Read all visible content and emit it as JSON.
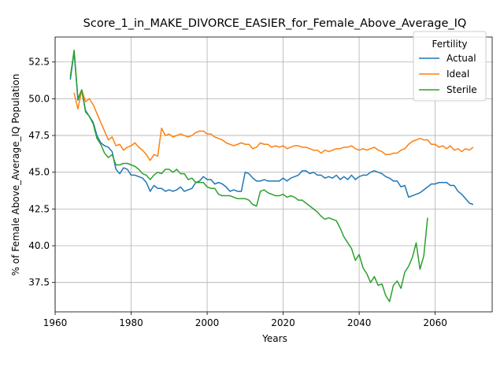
{
  "chart_data": {
    "type": "line",
    "title": "Score_1_in_MAKE_DIVORCE_EASIER_for_Female_Above_Average_IQ",
    "xlabel": "Years",
    "ylabel": "% of Female Above_Average_IQ Population",
    "xlim": [
      1960,
      2075
    ],
    "ylim": [
      35.5,
      54.2
    ],
    "xticks": [
      1960,
      1980,
      2000,
      2020,
      2040,
      2060
    ],
    "yticks": [
      37.5,
      40.0,
      42.5,
      45.0,
      47.5,
      50.0,
      52.5
    ],
    "ytick_labels": [
      "37.5",
      "40.0",
      "42.5",
      "45.0",
      "47.5",
      "50.0",
      "52.5"
    ],
    "grid": true,
    "legend": {
      "title": "Fertility",
      "position": "top-right"
    },
    "series": [
      {
        "name": "Actual",
        "color": "#1f77b4",
        "x": [
          1964,
          1965,
          1966,
          1967,
          1968,
          1969,
          1970,
          1971,
          1972,
          1973,
          1974,
          1975,
          1976,
          1977,
          1978,
          1979,
          1980,
          1981,
          1982,
          1983,
          1984,
          1985,
          1986,
          1987,
          1988,
          1989,
          1990,
          1991,
          1992,
          1993,
          1994,
          1995,
          1996,
          1997,
          1998,
          1999,
          2000,
          2001,
          2002,
          2003,
          2004,
          2005,
          2006,
          2007,
          2008,
          2009,
          2010,
          2011,
          2012,
          2013,
          2014,
          2015,
          2016,
          2017,
          2018,
          2019,
          2020,
          2021,
          2022,
          2023,
          2024,
          2025,
          2026,
          2027,
          2028,
          2029,
          2030,
          2031,
          2032,
          2033,
          2034,
          2035,
          2036,
          2037,
          2038,
          2039,
          2040,
          2041,
          2042,
          2043,
          2044,
          2045,
          2046,
          2047,
          2048,
          2049,
          2050,
          2051,
          2052,
          2053,
          2054,
          2055,
          2056,
          2057,
          2058,
          2059,
          2060,
          2061,
          2062,
          2063,
          2064,
          2065,
          2066,
          2067,
          2068,
          2069,
          2070
        ],
        "y": [
          51.3,
          53.2,
          49.9,
          50.6,
          49.2,
          48.8,
          48.4,
          47.5,
          47.0,
          46.8,
          46.7,
          46.4,
          45.2,
          44.9,
          45.3,
          45.2,
          44.8,
          44.8,
          44.7,
          44.6,
          44.3,
          43.7,
          44.1,
          43.9,
          43.9,
          43.7,
          43.8,
          43.7,
          43.8,
          44.0,
          43.7,
          43.8,
          43.9,
          44.3,
          44.4,
          44.7,
          44.5,
          44.5,
          44.2,
          44.3,
          44.2,
          44.0,
          43.7,
          43.8,
          43.7,
          43.7,
          45.0,
          44.9,
          44.6,
          44.4,
          44.4,
          44.5,
          44.4,
          44.4,
          44.4,
          44.4,
          44.6,
          44.4,
          44.6,
          44.7,
          44.8,
          45.1,
          45.1,
          44.9,
          45.0,
          44.8,
          44.8,
          44.6,
          44.7,
          44.6,
          44.8,
          44.5,
          44.7,
          44.5,
          44.8,
          44.5,
          44.7,
          44.8,
          44.8,
          45.0,
          45.1,
          45.0,
          44.9,
          44.7,
          44.6,
          44.4,
          44.4,
          44.0,
          44.1,
          43.3,
          43.4,
          43.5,
          43.6,
          43.8,
          44.0,
          44.2,
          44.2,
          44.3,
          44.3,
          44.3,
          44.1,
          44.1,
          43.7,
          43.5,
          43.2,
          42.9,
          42.8
        ]
      },
      {
        "name": "Ideal",
        "color": "#ff7f0e",
        "x": [
          1965,
          1966,
          1967,
          1968,
          1969,
          1970,
          1971,
          1972,
          1973,
          1974,
          1975,
          1976,
          1977,
          1978,
          1979,
          1980,
          1981,
          1982,
          1983,
          1984,
          1985,
          1986,
          1987,
          1988,
          1989,
          1990,
          1991,
          1992,
          1993,
          1994,
          1995,
          1996,
          1997,
          1998,
          1999,
          2000,
          2001,
          2002,
          2003,
          2004,
          2005,
          2006,
          2007,
          2008,
          2009,
          2010,
          2011,
          2012,
          2013,
          2014,
          2015,
          2016,
          2017,
          2018,
          2019,
          2020,
          2021,
          2022,
          2023,
          2024,
          2025,
          2026,
          2027,
          2028,
          2029,
          2030,
          2031,
          2032,
          2033,
          2034,
          2035,
          2036,
          2037,
          2038,
          2039,
          2040,
          2041,
          2042,
          2043,
          2044,
          2045,
          2046,
          2047,
          2048,
          2049,
          2050,
          2051,
          2052,
          2053,
          2054,
          2055,
          2056,
          2057,
          2058,
          2059,
          2060,
          2061,
          2062,
          2063,
          2064,
          2065,
          2066,
          2067,
          2068,
          2069,
          2070
        ],
        "y": [
          50.4,
          49.3,
          50.6,
          49.8,
          50.0,
          49.6,
          49.0,
          48.4,
          47.8,
          47.2,
          47.4,
          46.8,
          46.9,
          46.5,
          46.7,
          46.8,
          47.0,
          46.7,
          46.5,
          46.2,
          45.8,
          46.2,
          46.1,
          48.0,
          47.5,
          47.6,
          47.4,
          47.5,
          47.6,
          47.5,
          47.4,
          47.5,
          47.7,
          47.8,
          47.8,
          47.6,
          47.6,
          47.4,
          47.3,
          47.2,
          47.0,
          46.9,
          46.8,
          46.9,
          47.0,
          46.9,
          46.9,
          46.6,
          46.7,
          47.0,
          46.9,
          46.9,
          46.7,
          46.8,
          46.7,
          46.8,
          46.6,
          46.7,
          46.8,
          46.8,
          46.7,
          46.7,
          46.6,
          46.5,
          46.5,
          46.3,
          46.5,
          46.4,
          46.5,
          46.6,
          46.6,
          46.7,
          46.7,
          46.8,
          46.6,
          46.5,
          46.6,
          46.5,
          46.6,
          46.7,
          46.5,
          46.4,
          46.2,
          46.2,
          46.3,
          46.3,
          46.5,
          46.6,
          46.9,
          47.1,
          47.2,
          47.3,
          47.2,
          47.2,
          46.9,
          46.9,
          46.7,
          46.8,
          46.6,
          46.8,
          46.5,
          46.6,
          46.4,
          46.6,
          46.5,
          46.7
        ]
      },
      {
        "name": "Sterile",
        "color": "#2ca02c",
        "x": [
          1964,
          1965,
          1966,
          1967,
          1968,
          1969,
          1970,
          1971,
          1972,
          1973,
          1974,
          1975,
          1976,
          1977,
          1978,
          1979,
          1980,
          1981,
          1982,
          1983,
          1984,
          1985,
          1986,
          1987,
          1988,
          1989,
          1990,
          1991,
          1992,
          1993,
          1994,
          1995,
          1996,
          1997,
          1998,
          1999,
          2000,
          2001,
          2002,
          2003,
          2004,
          2005,
          2006,
          2007,
          2008,
          2009,
          2010,
          2011,
          2012,
          2013,
          2014,
          2015,
          2016,
          2017,
          2018,
          2019,
          2020,
          2021,
          2022,
          2023,
          2024,
          2025,
          2026,
          2027,
          2028,
          2029,
          2030,
          2031,
          2032,
          2033,
          2034,
          2035,
          2036,
          2037,
          2038,
          2039,
          2040,
          2041,
          2042,
          2043,
          2044,
          2045,
          2046,
          2047,
          2048,
          2049,
          2050,
          2051,
          2052,
          2053,
          2054,
          2055,
          2056,
          2057,
          2058
        ],
        "y": [
          51.5,
          53.3,
          50.0,
          50.6,
          49.1,
          48.8,
          48.3,
          47.3,
          46.9,
          46.3,
          46.0,
          46.2,
          45.5,
          45.5,
          45.6,
          45.6,
          45.5,
          45.4,
          45.2,
          44.9,
          44.8,
          44.5,
          44.8,
          45.0,
          44.9,
          45.2,
          45.2,
          45.0,
          45.2,
          44.9,
          44.9,
          44.5,
          44.6,
          44.3,
          44.3,
          44.3,
          44.0,
          43.9,
          43.9,
          43.5,
          43.4,
          43.4,
          43.4,
          43.3,
          43.2,
          43.2,
          43.2,
          43.1,
          42.8,
          42.7,
          43.7,
          43.8,
          43.6,
          43.5,
          43.4,
          43.4,
          43.5,
          43.3,
          43.4,
          43.3,
          43.1,
          43.1,
          42.9,
          42.7,
          42.5,
          42.3,
          42.0,
          41.8,
          41.9,
          41.8,
          41.7,
          41.2,
          40.6,
          40.2,
          39.8,
          39.0,
          39.4,
          38.5,
          38.1,
          37.5,
          37.9,
          37.3,
          37.4,
          36.6,
          36.2,
          37.3,
          37.6,
          37.1,
          38.2,
          38.6,
          39.2,
          40.2,
          38.4,
          39.3,
          41.9
        ]
      }
    ]
  }
}
